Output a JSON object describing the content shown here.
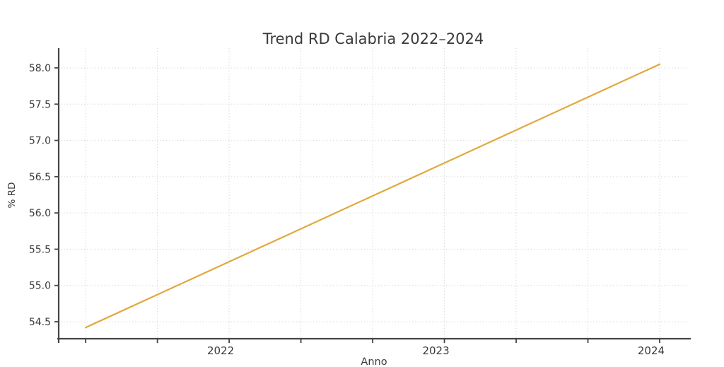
{
  "chart_data": {
    "type": "line",
    "title": "Trend RD Calabria 2022–2024",
    "xlabel": "Anno",
    "ylabel": "% RD",
    "grid": true,
    "grid_style": "dotted",
    "legend": false,
    "background_color": "#ffffff",
    "grid_color": "#d6d6d6",
    "spine_color": "#454545",
    "text_color": "#3a3a3a",
    "xlim": [
      2021.208,
      2024.138
    ],
    "ylim": [
      54.266,
      58.273
    ],
    "x_tick_positions": [
      2021.3333,
      2021.6667,
      2022,
      2022.3333,
      2022.6667,
      2023,
      2023.3333,
      2023.6667,
      2024
    ],
    "x_tick_labels": [
      "",
      "",
      "2022",
      "",
      "",
      "2023",
      "",
      "",
      "2024"
    ],
    "y_ticks": [
      54.5,
      55.0,
      55.5,
      56.0,
      56.5,
      57.0,
      57.5,
      58.0
    ],
    "y_tick_labels": [
      "54.5",
      "55.0",
      "55.5",
      "56.0",
      "56.5",
      "57.0",
      "57.5",
      "58.0"
    ],
    "series": [
      {
        "name": "% RD",
        "color": "#E0A83C",
        "line_width": 2.2,
        "x": [
          2021.3333,
          2024.0
        ],
        "y": [
          54.42,
          58.05
        ]
      }
    ],
    "readings_at_year_ticks": {
      "2022": 55.35,
      "2023": 56.72,
      "2024": 58.05
    }
  }
}
